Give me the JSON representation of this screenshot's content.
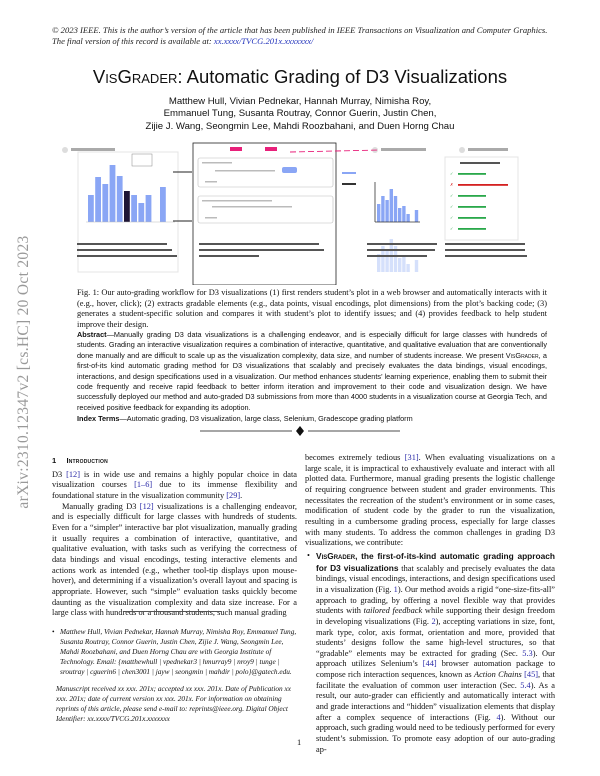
{
  "header": {
    "copyright": "© 2023 IEEE. This is the author’s version of the article that has been published in IEEE Transactions on Visualization and Computer Graphics. The final version of this record is available at: ",
    "doi_link": "xx.xxxx/TVCG.201x.xxxxxxx/"
  },
  "title": {
    "name": "VisGrader",
    "rest": ": Automatic Grading of D3 Visualizations"
  },
  "authors": [
    "Matthew Hull, Vivian Pednekar, Hannah Murray, Nimisha Roy,",
    "Emmanuel Tung, Susanta Routray, Connor Guerin, Justin Chen,",
    "Zijie J. Wang, Seongmin Lee, Mahdi Roozbahani, and Duen Horng Chau"
  ],
  "figure": {
    "steps": [
      "1",
      "2",
      "3",
      "4"
    ],
    "bar_color": "#8aa6f5",
    "highlight_color": "#1e1535",
    "accent_pink": "#e8207a",
    "ok_color": "#2aa84a",
    "error_color": "#d42020",
    "feedback_checks": [
      "ok",
      "error",
      "ok",
      "ok",
      "ok",
      "ok"
    ]
  },
  "caption": "Fig. 1: Our auto-grading workflow for D3 visualizations (1) first renders student’s plot in a web browser and automatically interacts with it (e.g., hover, click); (2) extracts gradable elements (e.g., data points, visual encodings, plot dimensions) from the plot’s backing code; (3) generates a student-specific solution and compares it with student’s plot to identify issues; and (4) provides feedback to help student improve their design.",
  "abstract": {
    "label": "Abstract",
    "text1": "—Manually grading D3 data visualizations is a challenging endeavor, and is especially difficult for large classes with hundreds of students. Grading an interactive visualization requires a combination of interactive, quantitative, and qualitative evaluation that are conventionally done manually and are difficult to scale up as the visualization complexity, data size, and number of students increase. We present ",
    "name": "VisGrader",
    "text2": ", a first-of-its kind automatic grading method for D3 visualizations that scalably and precisely evaluates the data bindings, visual encodings, interactions, and design specifications used in a visualization. Our method enhances students’ learning experience, enabling them to submit their code frequently and receive rapid feedback to better inform iteration and improvement to their code and visualization design. We have successfully deployed our method and auto-graded D3 submissions from more than 4000 students in a visualization course at Georgia Tech, and received positive feedback for expanding its adoption."
  },
  "index_terms": {
    "label": "Index Terms",
    "text": "—Automatic grading, D3 visualization, large class, Selenium, Gradescope grading platform"
  },
  "section": {
    "number": "1",
    "title": "Introduction"
  },
  "left_paragraphs": [
    [
      [
        "D3 "
      ],
      [
        "[12]",
        "cite"
      ],
      [
        " is in wide use and remains a highly popular choice in data visualization courses "
      ],
      [
        "[1–6]",
        "cite"
      ],
      [
        " due to its immense flexibility and foundational stature in the visualization community "
      ],
      [
        "[29]",
        "cite"
      ],
      [
        "."
      ]
    ],
    [
      [
        "Manually grading D3 "
      ],
      [
        "[12]",
        "cite"
      ],
      [
        " visualizations is a challenging endeavor, and is especially difficult for large classes with hundreds of students. Even for a “simpler” interactive bar plot visualization, manually grading it usually requires a combination of interactive, quantitative, and qualitative evaluation, with tasks such as verifying the correctness of data bindings and visual encodings, testing interactive elements and actions work as intended (e.g., whether tool-tip displays upon mouse-hover), and determining if a visualization’s overall layout and spacing is appropriate. However, such “simple” evaluation tasks quickly become daunting as the visualization complexity and data size increase. For a large class with hundreds or a thousand students, such manual grading"
      ]
    ]
  ],
  "footnote": "Matthew Hull, Vivian Pednekar, Hannah Murray, Nimisha Roy, Emmanuel Tung, Susanta Routray, Connor Guerin, Justin Chen, Zijie J. Wang, Seongmin Lee, Mahdi Roozbahani, and Duen Horng Chau are with Georgia Institute of Technology. Email: {matthewhull | vpednekar3 | hmurray9 | nroy9 | tunge | sroutray | cguerin6 | chen3001 | jayw | seongmin | mahdir | polo}@gatech.edu.",
  "manuscript": "Manuscript received xx xxx. 201x; accepted xx xxx. 201x. Date of Publication xx xxx. 201x; date of current version xx xxx. 201x. For information on obtaining reprints of this article, please send e-mail to: reprints@ieee.org. Digital Object Identifier: xx.xxxx/TVCG.201x.xxxxxxx",
  "right_paragraphs": [
    [
      [
        "becomes extremely tedious "
      ],
      [
        "[31]",
        "cite"
      ],
      [
        ". When evaluating visualizations on a large scale, it is impractical to exhaustively evaluate and interact with all plotted data. Furthermore, manual grading presents the logistic challenge of requiring congruence between student and grader environments. This necessitates the recreation of the student’s environment or in some cases, modification of student code by the grader to run the visualization, resulting in a cumbersome grading process, especially for large classes with many students. To address the common challenges in grading D3 visualizations, we contribute:"
      ]
    ]
  ],
  "bullets": [
    [
      [
        "VisGrader",
        "bold sans sc"
      ],
      [
        ", the first-of-its-kind automatic grading approach for D3 visualizations",
        "bold sans"
      ],
      [
        " that scalably and precisely evaluates the data bindings, visual encodings, interactions, and design specifications used in a visualization (Fig. "
      ],
      [
        "1",
        "cite"
      ],
      [
        "). Our method avoids a rigid “one-size-fits-all” approach to grading, by offering a novel flexible way that provides students with "
      ],
      [
        "tailored feedback",
        "it"
      ],
      [
        " while supporting their design freedom in developing visualizations (Fig. "
      ],
      [
        "2",
        "cite"
      ],
      [
        "), accepting variations in size, font, mark type, color, axis format, orientation and more, provided that students’ designs follow the same high-level structures, so that “gradable” elements may be extracted for grading (Sec. "
      ],
      [
        "5.3",
        "cite"
      ],
      [
        "). Our approach utilizes Selenium’s "
      ],
      [
        "[44]",
        "cite"
      ],
      [
        " browser automation package to compose rich interaction sequences, known as "
      ],
      [
        "Action Chains",
        "it"
      ],
      [
        " "
      ],
      [
        "[45]",
        "cite"
      ],
      [
        ", that facilitate the evaluation of common user interaction (Sec. "
      ],
      [
        "5.4",
        "cite"
      ],
      [
        "). As a result, our auto-grader can efficiently and automatically interact with and grade interactions and “hidden” visualization elements that display after a complex sequence of interactions (Fig. "
      ],
      [
        "4",
        "cite"
      ],
      [
        "). Without our approach, such grading would need to be tediously performed for every student’s submission. To promote easy adoption of our auto-grading ap-"
      ]
    ]
  ],
  "page_number": "1",
  "arxiv_stamp": "arXiv:2310.12347v2  [cs.HC]  20 Oct 2023"
}
